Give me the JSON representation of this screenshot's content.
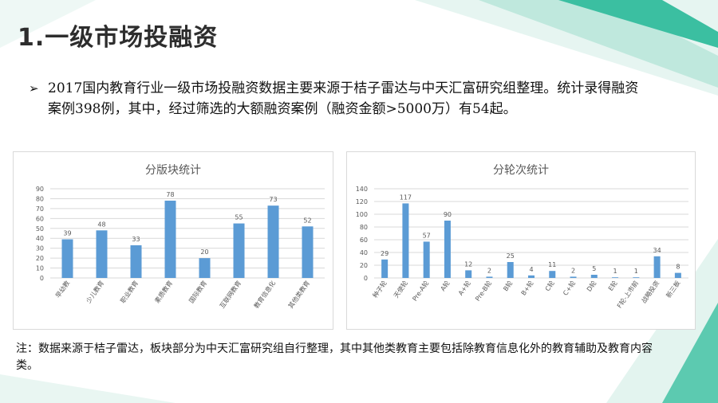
{
  "title": "1.一级市场投融资",
  "bullet_symbol": "➢",
  "paragraph": "2017国内教育行业一级市场投融资数据主要来源于桔子雷达与中天汇富研究组整理。统计录得融资案例398例，其中，经过筛选的大额融资案例（融资金额>5000万）有54起。",
  "note": "注：数据来源于桔子雷达，板块部分为中天汇富研究组自行整理，其中其他类教育主要包括除教育信息化外的教育辅助及教育内容类。",
  "colors": {
    "bar": "#5b9bd5",
    "grid": "#d9d9d9",
    "text": "#595959",
    "accent": "#1fb59a"
  },
  "chart_data": [
    {
      "type": "bar",
      "title": "分版块统计",
      "categories": [
        "早幼教",
        "少儿教育",
        "职业教育",
        "素质教育",
        "国际教育",
        "互联网教育",
        "教育信息化",
        "其他类教育"
      ],
      "values": [
        39,
        48,
        33,
        78,
        20,
        55,
        73,
        52
      ],
      "ylim": [
        0,
        90
      ],
      "yticks": [
        0,
        10,
        20,
        30,
        40,
        50,
        60,
        70,
        80,
        90
      ],
      "grid": true,
      "data_labels": true
    },
    {
      "type": "bar",
      "title": "分轮次统计",
      "categories": [
        "种子轮",
        "天使轮",
        "Pre-A轮",
        "A轮",
        "A+轮",
        "Pre-B轮",
        "B轮",
        "B+轮",
        "C轮",
        "C+轮",
        "D轮",
        "E轮",
        "F轮-上市前",
        "战略投资",
        "新三板"
      ],
      "values": [
        29,
        117,
        57,
        90,
        12,
        2,
        25,
        4,
        11,
        2,
        5,
        1,
        1,
        34,
        8
      ],
      "ylim": [
        0,
        140
      ],
      "yticks": [
        0,
        20,
        40,
        60,
        80,
        100,
        120,
        140
      ],
      "grid": true,
      "data_labels": true
    }
  ]
}
